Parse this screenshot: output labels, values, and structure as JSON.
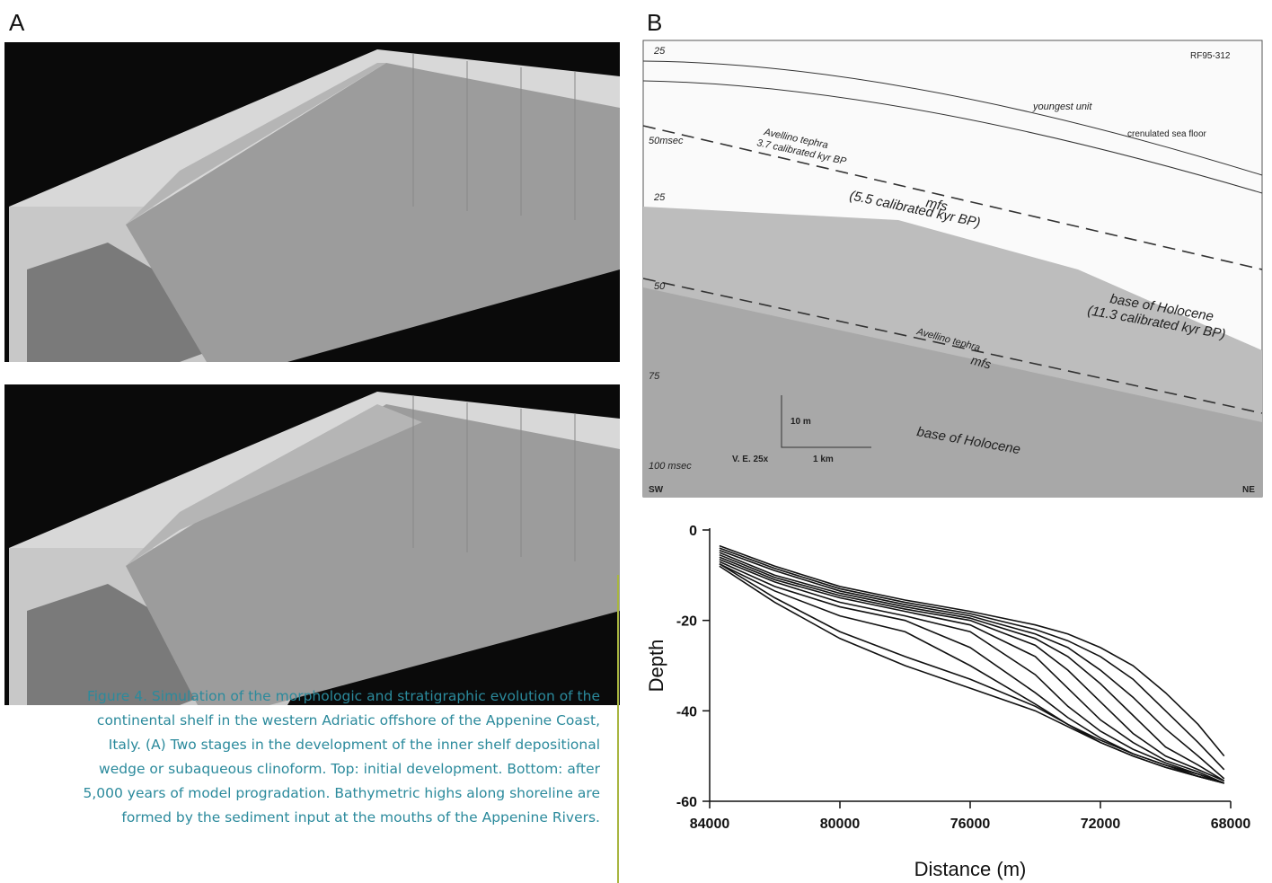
{
  "panel_a": {
    "label": "A"
  },
  "panel_b": {
    "label": "B",
    "seismic": {
      "line_id": "RF95-312",
      "youngest": "youngest unit",
      "crenulated": "crenulated sea floor",
      "tephra_upper": "Avellino tephra",
      "tephra_upper_age": "3.7 calibrated kyr BP",
      "t50_upper": "50msec",
      "t25_upper": "25",
      "t25_mid": "25",
      "mfs_upper": "mfs",
      "mfs_upper_age": "(5.5 calibrated kyr BP)",
      "base_upper": "base of Holocene",
      "base_upper_age": "(11.3 calibrated kyr BP)",
      "tephra_lower": "Avellino tephra",
      "mfs_lower": "mfs",
      "t50_lower": "50",
      "t75_lower": "75",
      "scale_v": "10 m",
      "scale_h": "1 km",
      "ve": "V. E. 25x",
      "base_lower": "base of Holocene",
      "t100": "100 msec",
      "sw": "SW",
      "ne": "NE"
    }
  },
  "caption": {
    "lines": [
      "Figure 4. Simulation of the morphologic and stratigraphic evolution of the",
      "continental shelf in the western Adriatic offshore of the Appenine Coast,",
      "Italy. (A) Two stages in the development of the inner shelf depositional",
      "wedge or subaqueous clinoform. Top: initial development. Bottom: after",
      "5,000 years of model progradation. Bathymetric highs along shoreline are",
      "formed by the sediment input at the mouths of the Appenine Rivers."
    ]
  },
  "chart_data": {
    "type": "line",
    "xlabel": "Distance (m)",
    "ylabel": "Depth",
    "color": "#111111",
    "x": [
      83700,
      82000,
      80000,
      78000,
      76000,
      74000,
      73000,
      72000,
      71000,
      70000,
      69000,
      68200
    ],
    "xlim": [
      84000,
      68000
    ],
    "xticks": [
      84000,
      80000,
      76000,
      72000,
      68000
    ],
    "ylim": [
      -60,
      0
    ],
    "yticks": [
      -60,
      -40,
      -20,
      0
    ],
    "series": [
      {
        "values": [
          -3.5,
          -8,
          -12.5,
          -15.5,
          -18,
          -21,
          -23,
          -26,
          -30,
          -36,
          -43,
          -50
        ]
      },
      {
        "values": [
          -4,
          -8.5,
          -13,
          -16,
          -18.5,
          -22,
          -24.5,
          -28,
          -33,
          -40,
          -47,
          -53
        ]
      },
      {
        "values": [
          -4.5,
          -9,
          -13.5,
          -16.5,
          -19,
          -23,
          -26,
          -31,
          -37,
          -44,
          -50,
          -55
        ]
      },
      {
        "values": [
          -5,
          -10,
          -14,
          -17,
          -19.5,
          -24,
          -28,
          -34,
          -41,
          -48,
          -52,
          -55.5
        ]
      },
      {
        "values": [
          -5.5,
          -10.5,
          -14.5,
          -17.5,
          -20,
          -25.5,
          -31,
          -38,
          -45,
          -50,
          -53,
          -55.5
        ]
      },
      {
        "values": [
          -6,
          -11,
          -15,
          -18,
          -21,
          -28,
          -35,
          -42,
          -47,
          -51,
          -53.5,
          -56
        ]
      },
      {
        "values": [
          -6.5,
          -11.5,
          -16,
          -19,
          -22.5,
          -32,
          -39,
          -44.5,
          -48.5,
          -51.5,
          -54,
          -56
        ]
      },
      {
        "values": [
          -7,
          -12.5,
          -17,
          -20,
          -26,
          -36,
          -41.5,
          -46,
          -49.5,
          -52,
          -54,
          -56
        ]
      },
      {
        "values": [
          -7.5,
          -13.5,
          -19,
          -22.5,
          -30,
          -38.5,
          -43,
          -47,
          -50,
          -52.5,
          -54.5,
          -56
        ]
      },
      {
        "values": [
          -7.5,
          -15,
          -22.5,
          -28,
          -33,
          -39,
          -43,
          -46.5,
          -49.5,
          -52,
          -54.5,
          -56
        ]
      },
      {
        "values": [
          -8,
          -16,
          -24,
          -30,
          -35,
          -40,
          -43.5,
          -47,
          -50,
          -52.5,
          -54.5,
          -56
        ]
      }
    ]
  }
}
